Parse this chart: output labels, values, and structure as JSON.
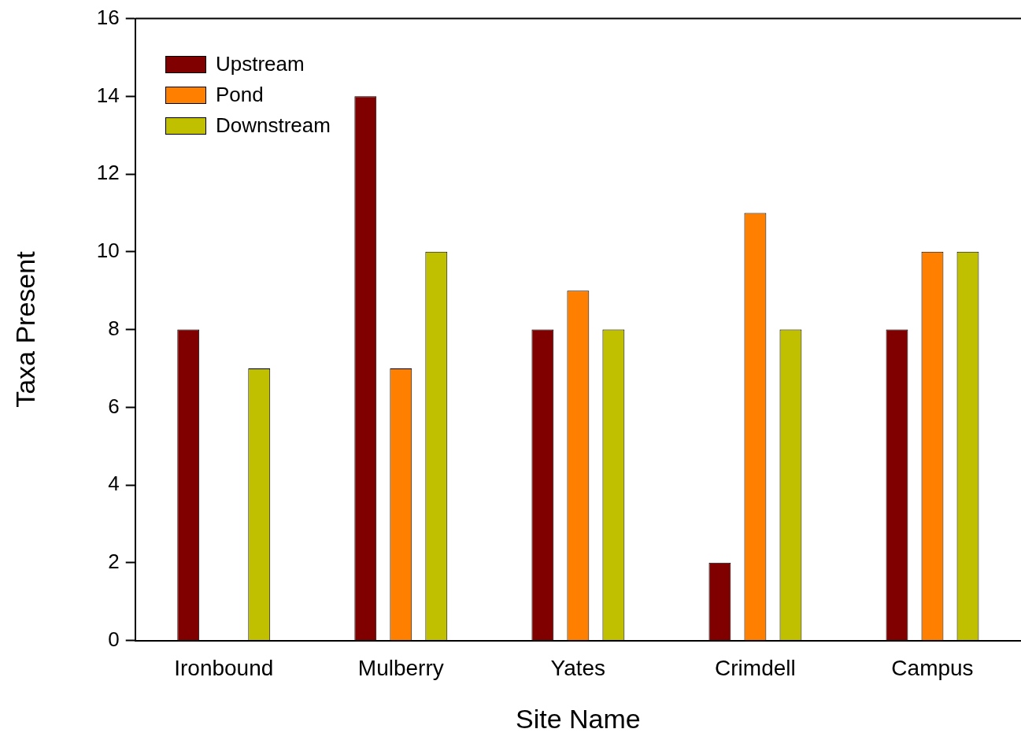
{
  "chart_data": {
    "type": "bar",
    "categories": [
      "Ironbound",
      "Mulberry",
      "Yates",
      "Crimdell",
      "Campus"
    ],
    "series": [
      {
        "name": "Upstream",
        "color": "#800000",
        "values": [
          8,
          14,
          8,
          2,
          8
        ]
      },
      {
        "name": "Pond",
        "color": "#ff8000",
        "values": [
          null,
          7,
          9,
          11,
          10
        ]
      },
      {
        "name": "Downstream",
        "color": "#c0c000",
        "values": [
          7,
          10,
          8,
          8,
          10
        ]
      }
    ],
    "xlabel": "Site Name",
    "ylabel": "Taxa Present",
    "ylim": [
      0,
      16
    ],
    "yticks": [
      0,
      2,
      4,
      6,
      8,
      10,
      12,
      14,
      16
    ],
    "grid": false,
    "legend": "top left"
  }
}
